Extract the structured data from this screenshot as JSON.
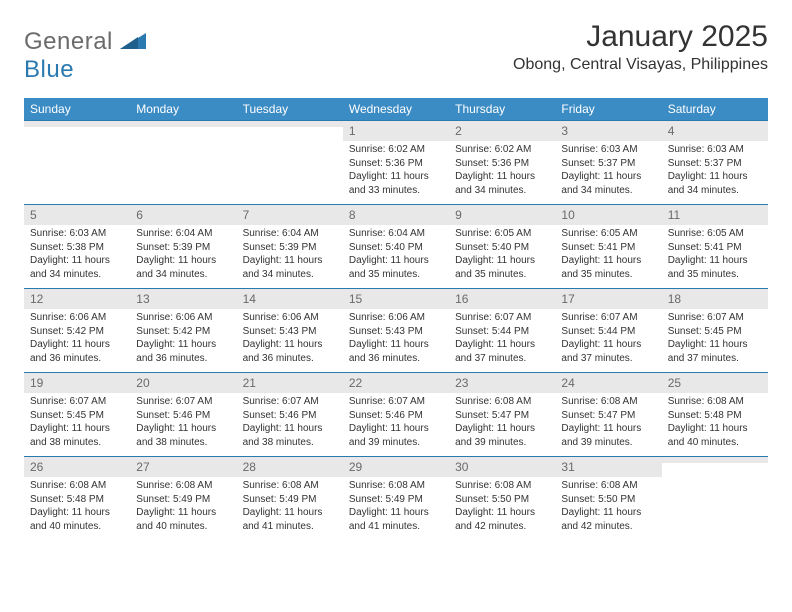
{
  "brand": {
    "part1": "General",
    "part2": "Blue",
    "part1_color": "#6b6b6b",
    "part2_color": "#2a7ab0",
    "logo_fontsize": 24
  },
  "title": {
    "month": "January 2025",
    "location": "Obong, Central Visayas, Philippines",
    "month_fontsize": 30,
    "location_fontsize": 16,
    "text_color": "#333333"
  },
  "styling": {
    "header_bg": "#3b8bc4",
    "header_fg": "#ffffff",
    "header_fontsize": 12,
    "daynum_bg": "#e8e8e8",
    "daynum_color": "#6a6a6a",
    "daynum_fontsize": 12,
    "body_fontsize": 10,
    "body_color": "#333333",
    "row_border_color": "#2a7ab0",
    "page_bg": "#ffffff"
  },
  "columns": [
    "Sunday",
    "Monday",
    "Tuesday",
    "Wednesday",
    "Thursday",
    "Friday",
    "Saturday"
  ],
  "weeks": [
    [
      {
        "day": "",
        "sunrise": "",
        "sunset": "",
        "daylight": ""
      },
      {
        "day": "",
        "sunrise": "",
        "sunset": "",
        "daylight": ""
      },
      {
        "day": "",
        "sunrise": "",
        "sunset": "",
        "daylight": ""
      },
      {
        "day": "1",
        "sunrise": "Sunrise: 6:02 AM",
        "sunset": "Sunset: 5:36 PM",
        "daylight": "Daylight: 11 hours and 33 minutes."
      },
      {
        "day": "2",
        "sunrise": "Sunrise: 6:02 AM",
        "sunset": "Sunset: 5:36 PM",
        "daylight": "Daylight: 11 hours and 34 minutes."
      },
      {
        "day": "3",
        "sunrise": "Sunrise: 6:03 AM",
        "sunset": "Sunset: 5:37 PM",
        "daylight": "Daylight: 11 hours and 34 minutes."
      },
      {
        "day": "4",
        "sunrise": "Sunrise: 6:03 AM",
        "sunset": "Sunset: 5:37 PM",
        "daylight": "Daylight: 11 hours and 34 minutes."
      }
    ],
    [
      {
        "day": "5",
        "sunrise": "Sunrise: 6:03 AM",
        "sunset": "Sunset: 5:38 PM",
        "daylight": "Daylight: 11 hours and 34 minutes."
      },
      {
        "day": "6",
        "sunrise": "Sunrise: 6:04 AM",
        "sunset": "Sunset: 5:39 PM",
        "daylight": "Daylight: 11 hours and 34 minutes."
      },
      {
        "day": "7",
        "sunrise": "Sunrise: 6:04 AM",
        "sunset": "Sunset: 5:39 PM",
        "daylight": "Daylight: 11 hours and 34 minutes."
      },
      {
        "day": "8",
        "sunrise": "Sunrise: 6:04 AM",
        "sunset": "Sunset: 5:40 PM",
        "daylight": "Daylight: 11 hours and 35 minutes."
      },
      {
        "day": "9",
        "sunrise": "Sunrise: 6:05 AM",
        "sunset": "Sunset: 5:40 PM",
        "daylight": "Daylight: 11 hours and 35 minutes."
      },
      {
        "day": "10",
        "sunrise": "Sunrise: 6:05 AM",
        "sunset": "Sunset: 5:41 PM",
        "daylight": "Daylight: 11 hours and 35 minutes."
      },
      {
        "day": "11",
        "sunrise": "Sunrise: 6:05 AM",
        "sunset": "Sunset: 5:41 PM",
        "daylight": "Daylight: 11 hours and 35 minutes."
      }
    ],
    [
      {
        "day": "12",
        "sunrise": "Sunrise: 6:06 AM",
        "sunset": "Sunset: 5:42 PM",
        "daylight": "Daylight: 11 hours and 36 minutes."
      },
      {
        "day": "13",
        "sunrise": "Sunrise: 6:06 AM",
        "sunset": "Sunset: 5:42 PM",
        "daylight": "Daylight: 11 hours and 36 minutes."
      },
      {
        "day": "14",
        "sunrise": "Sunrise: 6:06 AM",
        "sunset": "Sunset: 5:43 PM",
        "daylight": "Daylight: 11 hours and 36 minutes."
      },
      {
        "day": "15",
        "sunrise": "Sunrise: 6:06 AM",
        "sunset": "Sunset: 5:43 PM",
        "daylight": "Daylight: 11 hours and 36 minutes."
      },
      {
        "day": "16",
        "sunrise": "Sunrise: 6:07 AM",
        "sunset": "Sunset: 5:44 PM",
        "daylight": "Daylight: 11 hours and 37 minutes."
      },
      {
        "day": "17",
        "sunrise": "Sunrise: 6:07 AM",
        "sunset": "Sunset: 5:44 PM",
        "daylight": "Daylight: 11 hours and 37 minutes."
      },
      {
        "day": "18",
        "sunrise": "Sunrise: 6:07 AM",
        "sunset": "Sunset: 5:45 PM",
        "daylight": "Daylight: 11 hours and 37 minutes."
      }
    ],
    [
      {
        "day": "19",
        "sunrise": "Sunrise: 6:07 AM",
        "sunset": "Sunset: 5:45 PM",
        "daylight": "Daylight: 11 hours and 38 minutes."
      },
      {
        "day": "20",
        "sunrise": "Sunrise: 6:07 AM",
        "sunset": "Sunset: 5:46 PM",
        "daylight": "Daylight: 11 hours and 38 minutes."
      },
      {
        "day": "21",
        "sunrise": "Sunrise: 6:07 AM",
        "sunset": "Sunset: 5:46 PM",
        "daylight": "Daylight: 11 hours and 38 minutes."
      },
      {
        "day": "22",
        "sunrise": "Sunrise: 6:07 AM",
        "sunset": "Sunset: 5:46 PM",
        "daylight": "Daylight: 11 hours and 39 minutes."
      },
      {
        "day": "23",
        "sunrise": "Sunrise: 6:08 AM",
        "sunset": "Sunset: 5:47 PM",
        "daylight": "Daylight: 11 hours and 39 minutes."
      },
      {
        "day": "24",
        "sunrise": "Sunrise: 6:08 AM",
        "sunset": "Sunset: 5:47 PM",
        "daylight": "Daylight: 11 hours and 39 minutes."
      },
      {
        "day": "25",
        "sunrise": "Sunrise: 6:08 AM",
        "sunset": "Sunset: 5:48 PM",
        "daylight": "Daylight: 11 hours and 40 minutes."
      }
    ],
    [
      {
        "day": "26",
        "sunrise": "Sunrise: 6:08 AM",
        "sunset": "Sunset: 5:48 PM",
        "daylight": "Daylight: 11 hours and 40 minutes."
      },
      {
        "day": "27",
        "sunrise": "Sunrise: 6:08 AM",
        "sunset": "Sunset: 5:49 PM",
        "daylight": "Daylight: 11 hours and 40 minutes."
      },
      {
        "day": "28",
        "sunrise": "Sunrise: 6:08 AM",
        "sunset": "Sunset: 5:49 PM",
        "daylight": "Daylight: 11 hours and 41 minutes."
      },
      {
        "day": "29",
        "sunrise": "Sunrise: 6:08 AM",
        "sunset": "Sunset: 5:49 PM",
        "daylight": "Daylight: 11 hours and 41 minutes."
      },
      {
        "day": "30",
        "sunrise": "Sunrise: 6:08 AM",
        "sunset": "Sunset: 5:50 PM",
        "daylight": "Daylight: 11 hours and 42 minutes."
      },
      {
        "day": "31",
        "sunrise": "Sunrise: 6:08 AM",
        "sunset": "Sunset: 5:50 PM",
        "daylight": "Daylight: 11 hours and 42 minutes."
      },
      {
        "day": "",
        "sunrise": "",
        "sunset": "",
        "daylight": ""
      }
    ]
  ]
}
